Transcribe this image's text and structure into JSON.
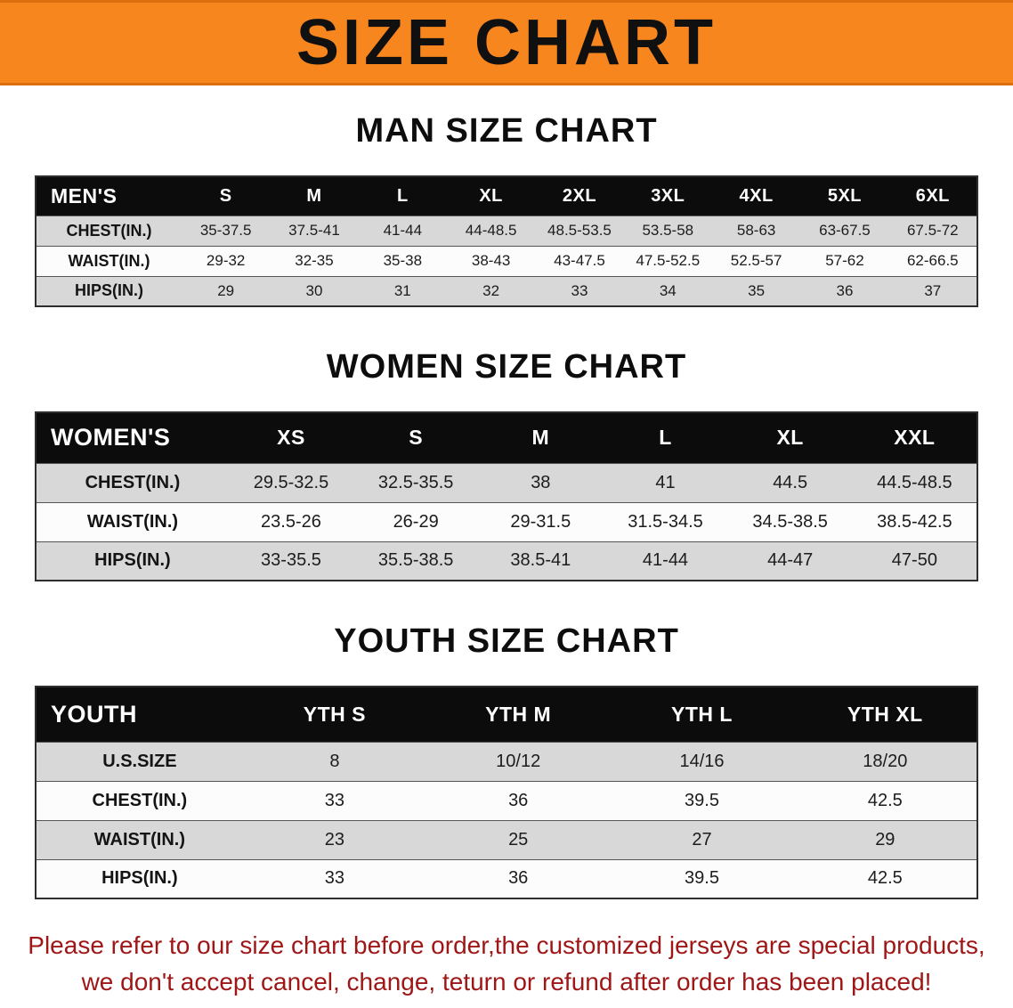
{
  "banner": {
    "title": "SIZE CHART",
    "bg_color": "#f6861d"
  },
  "sections": [
    {
      "heading": "MAN SIZE CHART",
      "header": [
        "MEN'S",
        "S",
        "M",
        "L",
        "XL",
        "2XL",
        "3XL",
        "4XL",
        "5XL",
        "6XL"
      ],
      "rows": [
        {
          "label": "CHEST(IN.)",
          "values": [
            "35-37.5",
            "37.5-41",
            "41-44",
            "44-48.5",
            "48.5-53.5",
            "53.5-58",
            "58-63",
            "63-67.5",
            "67.5-72"
          ]
        },
        {
          "label": "WAIST(IN.)",
          "values": [
            "29-32",
            "32-35",
            "35-38",
            "38-43",
            "43-47.5",
            "47.5-52.5",
            "52.5-57",
            "57-62",
            "62-66.5"
          ]
        },
        {
          "label": "HIPS(IN.)",
          "values": [
            "29",
            "30",
            "31",
            "32",
            "33",
            "34",
            "35",
            "36",
            "37"
          ]
        }
      ]
    },
    {
      "heading": "WOMEN SIZE CHART",
      "header": [
        "WOMEN'S",
        "XS",
        "S",
        "M",
        "L",
        "XL",
        "XXL"
      ],
      "rows": [
        {
          "label": "CHEST(IN.)",
          "values": [
            "29.5-32.5",
            "32.5-35.5",
            "38",
            "41",
            "44.5",
            "44.5-48.5"
          ]
        },
        {
          "label": "WAIST(IN.)",
          "values": [
            "23.5-26",
            "26-29",
            "29-31.5",
            "31.5-34.5",
            "34.5-38.5",
            "38.5-42.5"
          ]
        },
        {
          "label": "HIPS(IN.)",
          "values": [
            "33-35.5",
            "35.5-38.5",
            "38.5-41",
            "41-44",
            "44-47",
            "47-50"
          ]
        }
      ]
    },
    {
      "heading": "YOUTH SIZE CHART",
      "header": [
        "YOUTH",
        "YTH S",
        "YTH M",
        "YTH L",
        "YTH XL"
      ],
      "rows": [
        {
          "label": "U.S.SIZE",
          "values": [
            "8",
            "10/12",
            "14/16",
            "18/20"
          ]
        },
        {
          "label": "CHEST(IN.)",
          "values": [
            "33",
            "36",
            "39.5",
            "42.5"
          ]
        },
        {
          "label": "WAIST(IN.)",
          "values": [
            "23",
            "25",
            "27",
            "29"
          ]
        },
        {
          "label": "HIPS(IN.)",
          "values": [
            "33",
            "36",
            "39.5",
            "42.5"
          ]
        }
      ]
    }
  ],
  "footer": {
    "color": "#9e1616",
    "lines": [
      "Please refer to our size chart before order,the customized jerseys are special products,",
      "we don't accept cancel, change, teturn or refund after order has been placed!"
    ]
  }
}
